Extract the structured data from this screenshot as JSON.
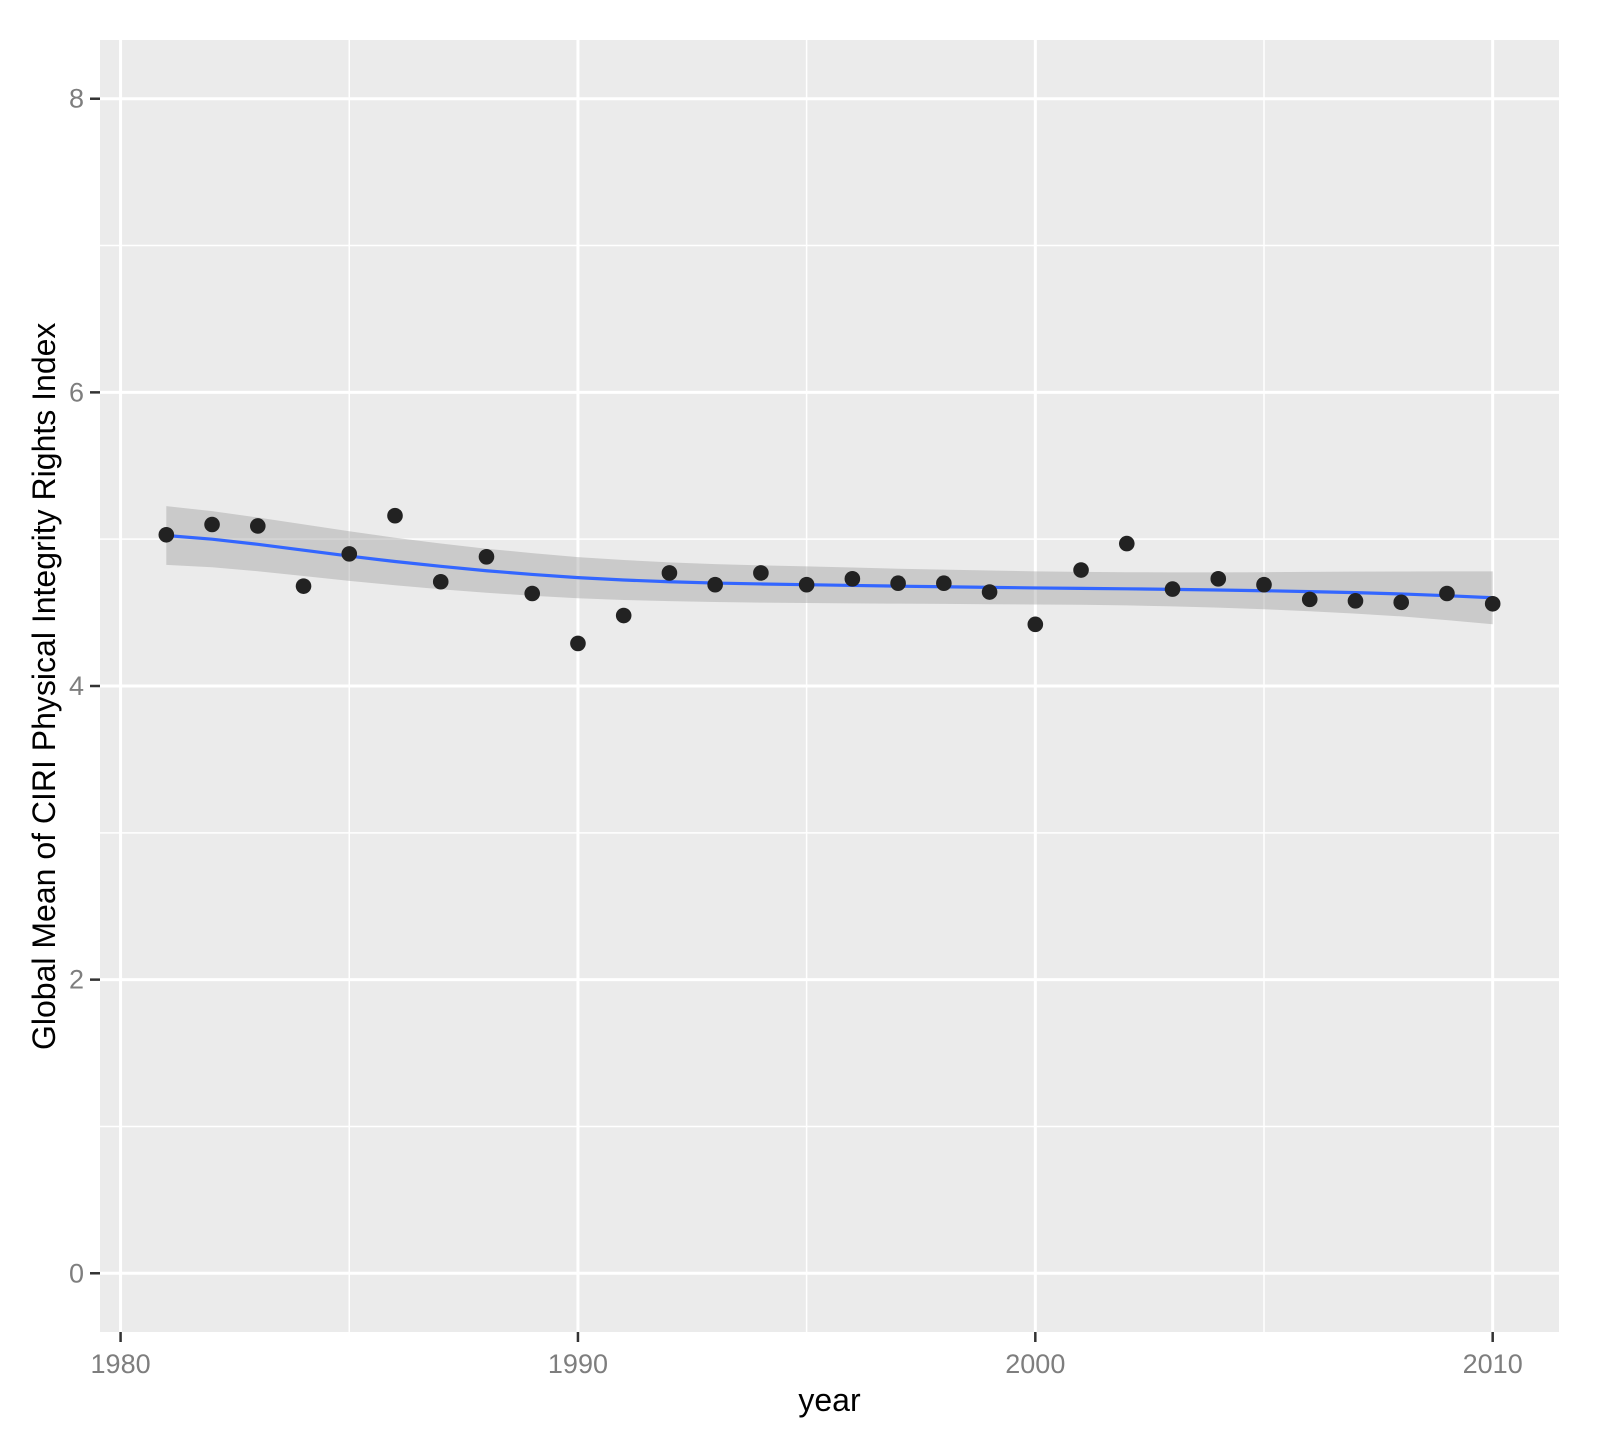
{
  "chart_data": {
    "type": "scatter",
    "title": "",
    "xlabel": "year",
    "ylabel": "Global Mean of CIRI Physical Integrity Rights Index",
    "legend": "none",
    "grid": true,
    "xlim": [
      1979.55,
      2011.45
    ],
    "ylim": [
      -0.4,
      8.4
    ],
    "x_ticks": {
      "major": [
        1980,
        1990,
        2000,
        2010
      ],
      "major_labels": [
        "1980",
        "1990",
        "2000",
        "2010"
      ],
      "minor": [
        1985,
        1995,
        2005
      ]
    },
    "y_ticks": {
      "major": [
        0,
        2,
        4,
        6,
        8
      ],
      "major_labels": [
        "0",
        "2",
        "4",
        "6",
        "8"
      ],
      "minor": [
        1,
        3,
        5,
        7
      ]
    },
    "x": [
      1981,
      1982,
      1983,
      1984,
      1985,
      1986,
      1987,
      1988,
      1989,
      1990,
      1991,
      1992,
      1993,
      1994,
      1995,
      1996,
      1997,
      1998,
      1999,
      2000,
      2001,
      2002,
      2003,
      2004,
      2005,
      2006,
      2007,
      2008,
      2009,
      2010
    ],
    "y": [
      5.03,
      5.1,
      5.09,
      4.68,
      4.9,
      5.16,
      4.71,
      4.88,
      4.63,
      4.29,
      4.48,
      4.77,
      4.69,
      4.77,
      4.69,
      4.73,
      4.7,
      4.7,
      4.64,
      4.42,
      4.79,
      4.97,
      4.66,
      4.73,
      4.69,
      4.59,
      4.58,
      4.57,
      4.63,
      4.56
    ],
    "smooth_line": {
      "name": "loess-smooth",
      "x": [
        1981,
        1982,
        1983,
        1984,
        1985,
        1986,
        1987,
        1988,
        1989,
        1990,
        1991,
        1992,
        1993,
        1994,
        1995,
        1996,
        1997,
        1998,
        1999,
        2000,
        2001,
        2002,
        2003,
        2004,
        2005,
        2006,
        2007,
        2008,
        2009,
        2010
      ],
      "y": [
        5.025,
        5.0,
        4.965,
        4.925,
        4.885,
        4.848,
        4.815,
        4.785,
        4.76,
        4.738,
        4.722,
        4.71,
        4.701,
        4.695,
        4.69,
        4.685,
        4.68,
        4.676,
        4.672,
        4.668,
        4.665,
        4.662,
        4.658,
        4.654,
        4.649,
        4.643,
        4.636,
        4.627,
        4.615,
        4.601
      ]
    },
    "ribbon": {
      "name": "confidence-band",
      "upper": [
        5.225,
        5.191,
        5.148,
        5.101,
        5.054,
        5.01,
        4.971,
        4.935,
        4.905,
        4.878,
        4.858,
        4.842,
        4.83,
        4.822,
        4.815,
        4.807,
        4.799,
        4.793,
        4.787,
        4.781,
        4.777,
        4.775,
        4.774,
        4.774,
        4.775,
        4.777,
        4.779,
        4.78,
        4.781,
        4.781
      ],
      "lower": [
        4.825,
        4.809,
        4.782,
        4.749,
        4.716,
        4.686,
        4.659,
        4.635,
        4.615,
        4.598,
        4.586,
        4.578,
        4.572,
        4.568,
        4.565,
        4.563,
        4.561,
        4.559,
        4.557,
        4.555,
        4.553,
        4.549,
        4.542,
        4.534,
        4.523,
        4.509,
        4.493,
        4.474,
        4.449,
        4.421
      ]
    }
  },
  "colors": {
    "outer_background": "#ffffff",
    "panel_background": "#ebebeb",
    "grid_major": "#ffffff",
    "grid_minor": "#ffffff",
    "point": "#222222",
    "smooth_line": "#3366ff",
    "ribbon_fill": "#999999",
    "ribbon_opacity": "0.4",
    "tick_mark": "#333333",
    "tick_label": "#7e7e7e",
    "axis_title": "#000000"
  }
}
